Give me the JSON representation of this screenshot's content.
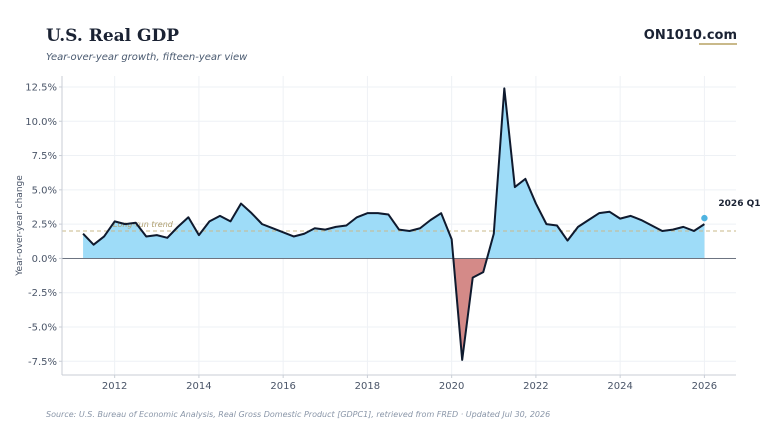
{
  "header": {
    "title": "U.S. Real GDP",
    "subtitle": "Year-over-year growth, fifteen-year view",
    "brand": "ON1010.com"
  },
  "footer": {
    "source": "Source: U.S. Bureau of Economic Analysis, Real Gross Domestic Product [GDPC1], retrieved from FRED · Updated Jul 30, 2026"
  },
  "colors": {
    "positive_fill": "#9edcf8",
    "negative_fill": "#d48a88",
    "line": "#0f1a2e",
    "trend": "#c9b98a",
    "last_point": "#4fb3e0"
  },
  "chart_data": {
    "type": "area",
    "xlabel": "",
    "ylabel": "Year-over-year change",
    "xlim": [
      2010.75,
      2026.75
    ],
    "ylim": [
      -8.5,
      13.3
    ],
    "grid": true,
    "x_ticks": [
      2012,
      2014,
      2016,
      2018,
      2020,
      2022,
      2024,
      2026
    ],
    "y_ticks": [
      -7.5,
      -5.0,
      -2.5,
      0.0,
      2.5,
      5.0,
      7.5,
      10.0,
      12.5
    ],
    "y_tick_labels": [
      "-7.5%",
      "-5.0%",
      "-2.5%",
      "0.0%",
      "2.5%",
      "5.0%",
      "7.5%",
      "10.0%",
      "12.5%"
    ],
    "trend": {
      "label": "Long-run trend",
      "value": 2.0
    },
    "last_label": "2026 Q1",
    "series": [
      {
        "x": [
          2011.25,
          2011.5,
          2011.75,
          2012.0,
          2012.25,
          2012.5,
          2012.75,
          2013.0,
          2013.25,
          2013.5,
          2013.75,
          2014.0,
          2014.25,
          2014.5,
          2014.75,
          2015.0,
          2015.25,
          2015.5,
          2015.75,
          2016.0,
          2016.25,
          2016.5,
          2016.75,
          2017.0,
          2017.25,
          2017.5,
          2017.75,
          2018.0,
          2018.25,
          2018.5,
          2018.75,
          2019.0,
          2019.25,
          2019.5,
          2019.75,
          2020.0,
          2020.25,
          2020.5,
          2020.75,
          2021.0,
          2021.25,
          2021.5,
          2021.75,
          2022.0,
          2022.25,
          2022.5,
          2022.75,
          2023.0,
          2023.25,
          2023.5,
          2023.75,
          2024.0,
          2024.25,
          2024.5,
          2024.75,
          2025.0,
          2025.25,
          2025.5,
          2025.75,
          2026.0
        ],
        "values": [
          1.8,
          1.0,
          1.6,
          2.7,
          2.5,
          2.6,
          1.6,
          1.7,
          1.5,
          2.3,
          3.0,
          1.7,
          2.7,
          3.1,
          2.7,
          4.0,
          3.3,
          2.5,
          2.2,
          1.9,
          1.6,
          1.8,
          2.2,
          2.1,
          2.3,
          2.4,
          3.0,
          3.3,
          3.3,
          3.2,
          2.1,
          2.0,
          2.2,
          2.8,
          3.3,
          1.4,
          -7.4,
          -1.4,
          -1.0,
          1.8,
          12.4,
          5.2,
          5.8,
          4.0,
          2.5,
          2.4,
          1.3,
          2.3,
          2.8,
          3.3,
          3.4,
          2.9,
          3.1,
          2.8,
          2.4,
          2.0,
          2.1,
          2.3,
          2.0,
          2.5
        ]
      }
    ]
  }
}
